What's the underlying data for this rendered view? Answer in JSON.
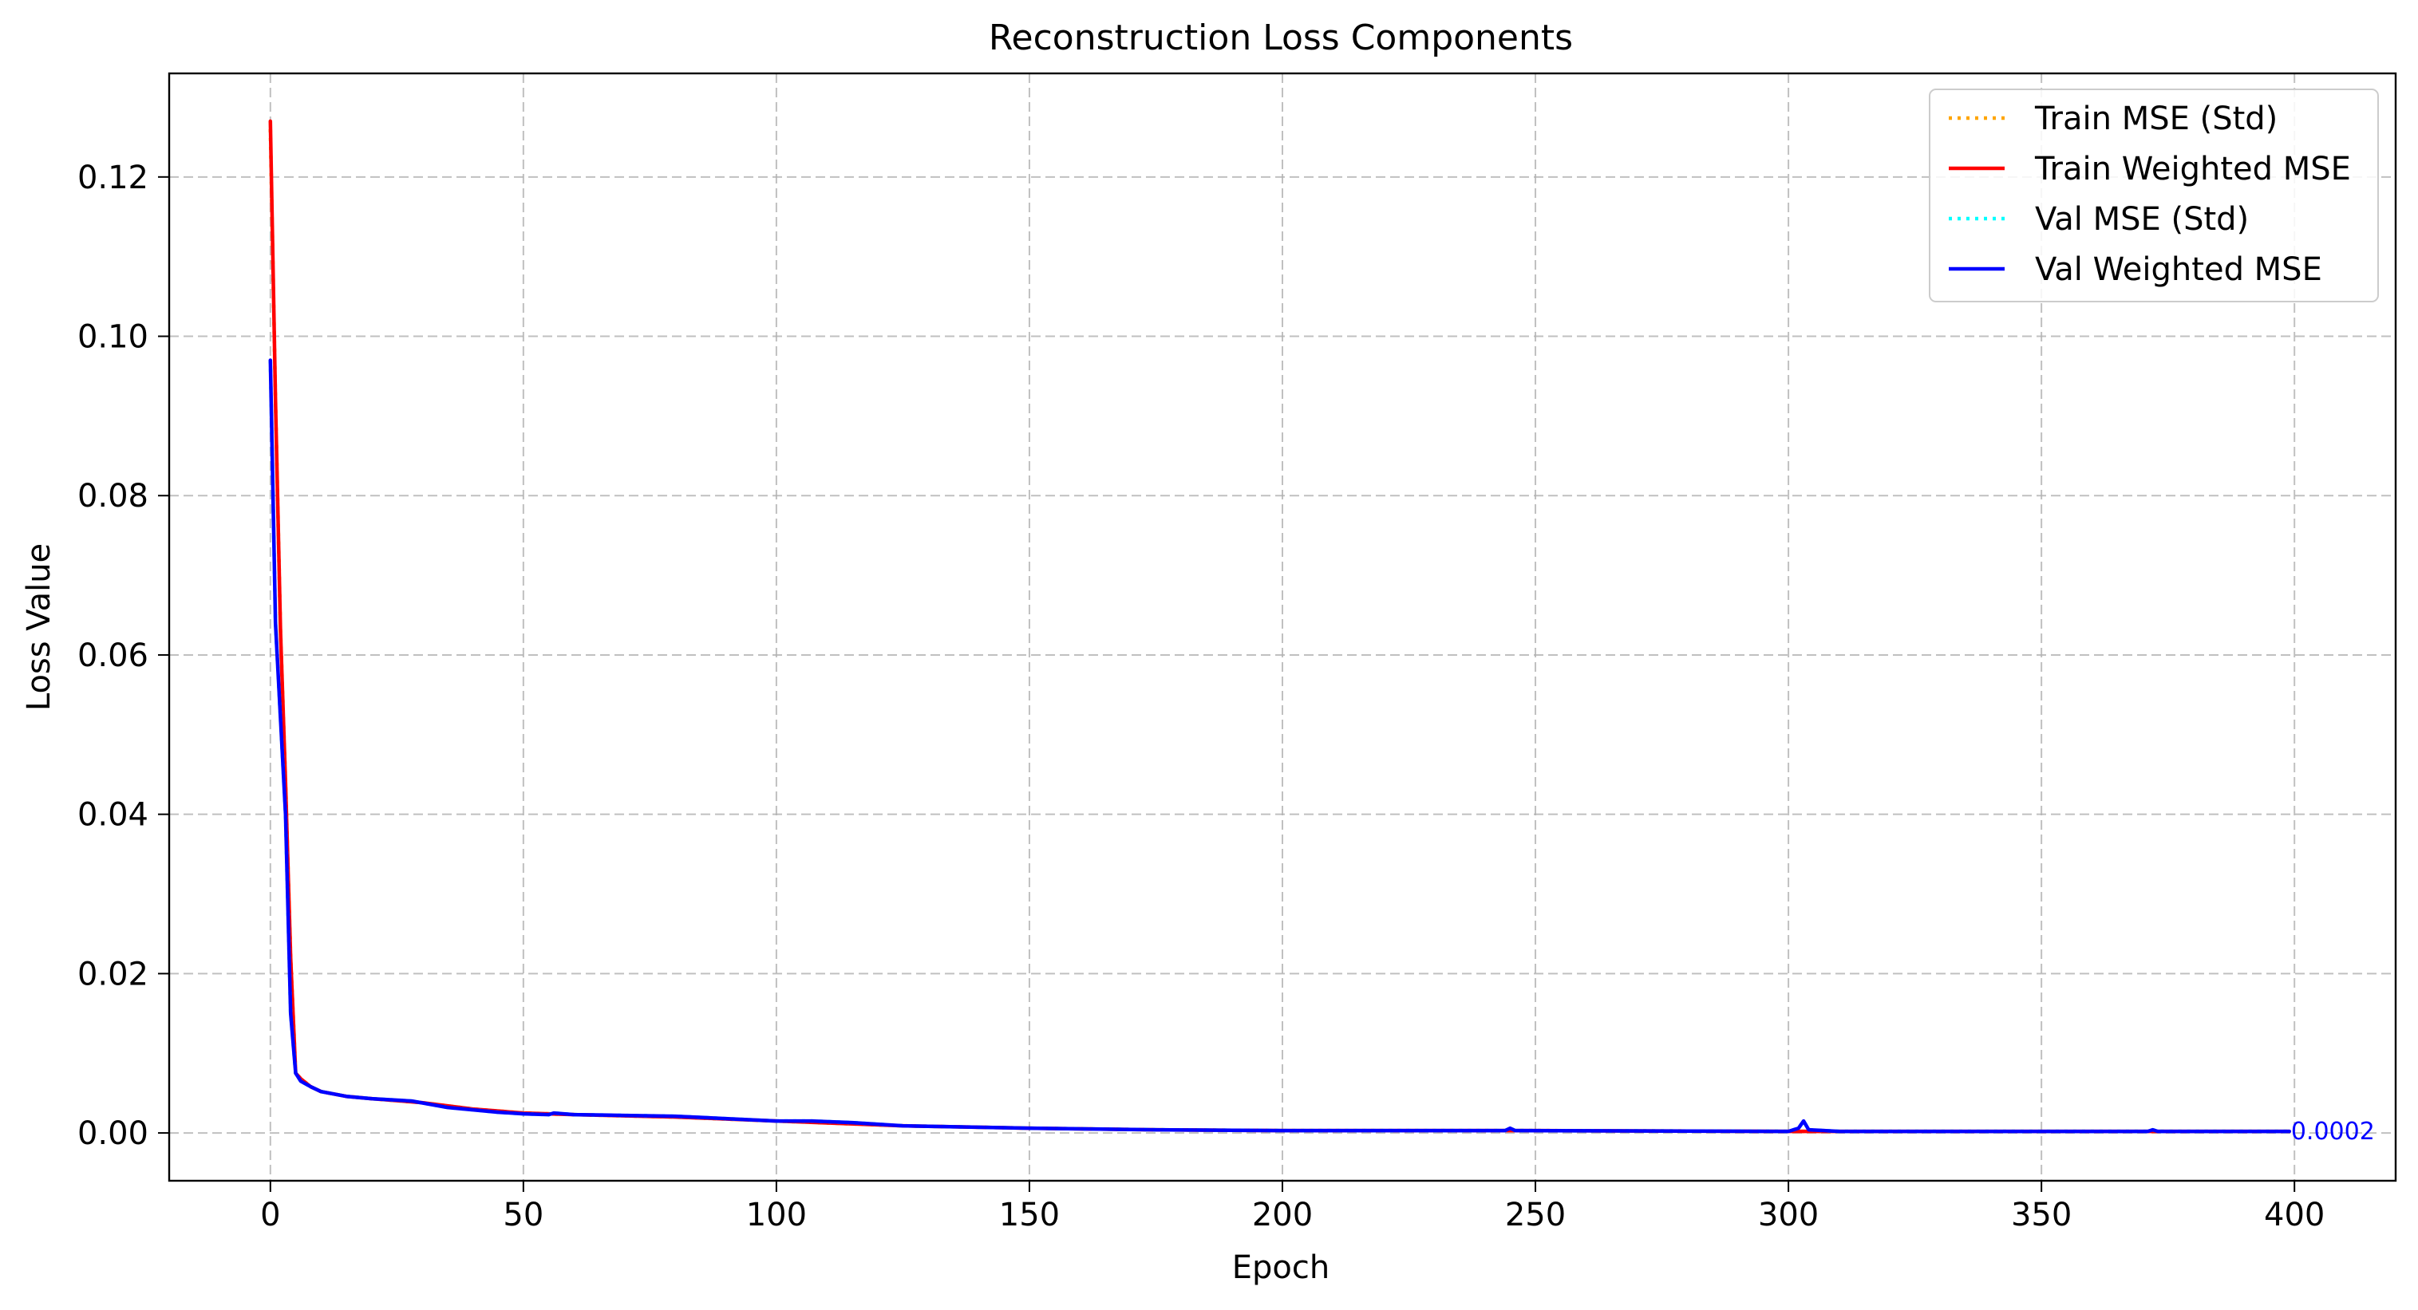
{
  "chart_data": {
    "type": "line",
    "title": "Reconstruction Loss Components",
    "xlabel": "Epoch",
    "ylabel": "Loss Value",
    "xlim": [
      -20,
      420
    ],
    "ylim": [
      -0.006,
      0.133
    ],
    "xticks": [
      0,
      50,
      100,
      150,
      200,
      250,
      300,
      350,
      400
    ],
    "yticks": [
      0.0,
      0.02,
      0.04,
      0.06,
      0.08,
      0.1,
      0.12
    ],
    "xtick_labels": [
      "0",
      "50",
      "100",
      "150",
      "200",
      "250",
      "300",
      "350",
      "400"
    ],
    "ytick_labels": [
      "0.00",
      "0.02",
      "0.04",
      "0.06",
      "0.08",
      "0.10",
      "0.12"
    ],
    "grid": true,
    "legend_position": "upper right",
    "series": [
      {
        "name": "Train MSE (Std)",
        "color": "#FFA500",
        "style": "dotted",
        "x": [
          0,
          1,
          2,
          3,
          4,
          5,
          6,
          8,
          10,
          15,
          20,
          30,
          40,
          50,
          60,
          80,
          100,
          125,
          150,
          175,
          200,
          250,
          300,
          350,
          399
        ],
        "y": [
          0.126,
          0.092,
          0.063,
          0.044,
          0.022,
          0.0075,
          0.0068,
          0.0058,
          0.0052,
          0.0046,
          0.0043,
          0.0038,
          0.003,
          0.0025,
          0.0023,
          0.002,
          0.0015,
          0.0009,
          0.0006,
          0.0004,
          0.0003,
          0.0003,
          0.0002,
          0.0002,
          0.0002
        ]
      },
      {
        "name": "Train Weighted MSE",
        "color": "#FF0000",
        "style": "solid",
        "x": [
          0,
          1,
          2,
          3,
          4,
          5,
          6,
          8,
          10,
          15,
          20,
          30,
          40,
          50,
          60,
          80,
          100,
          125,
          150,
          175,
          200,
          250,
          300,
          350,
          399
        ],
        "y": [
          0.127,
          0.092,
          0.063,
          0.044,
          0.022,
          0.0075,
          0.0068,
          0.0058,
          0.0052,
          0.0046,
          0.0043,
          0.0038,
          0.003,
          0.0025,
          0.0023,
          0.002,
          0.0015,
          0.0009,
          0.0006,
          0.0004,
          0.0003,
          0.0003,
          0.0002,
          0.0002,
          0.0002
        ]
      },
      {
        "name": "Val MSE (Std)",
        "color": "#00FFFF",
        "style": "dotted",
        "x": [
          0,
          1,
          2,
          3,
          4,
          5,
          6,
          8,
          10,
          15,
          20,
          28,
          35,
          45,
          50,
          55,
          56,
          60,
          70,
          80,
          90,
          100,
          107,
          115,
          125,
          150,
          175,
          200,
          244,
          245,
          246,
          300,
          302,
          303,
          304,
          310,
          350,
          371,
          372,
          373,
          399
        ],
        "y": [
          0.097,
          0.064,
          0.052,
          0.04,
          0.015,
          0.0075,
          0.0065,
          0.0058,
          0.0052,
          0.0046,
          0.0043,
          0.004,
          0.0032,
          0.0026,
          0.0024,
          0.0023,
          0.0025,
          0.0023,
          0.0022,
          0.0021,
          0.0018,
          0.0015,
          0.0015,
          0.0013,
          0.0009,
          0.0006,
          0.0004,
          0.0003,
          0.0003,
          0.0006,
          0.0003,
          0.0002,
          0.0006,
          0.0015,
          0.0004,
          0.0002,
          0.0002,
          0.0002,
          0.0004,
          0.0002,
          0.0002
        ]
      },
      {
        "name": "Val Weighted MSE",
        "color": "#0000FF",
        "style": "solid",
        "x": [
          0,
          1,
          2,
          3,
          4,
          5,
          6,
          8,
          10,
          15,
          20,
          28,
          35,
          45,
          50,
          55,
          56,
          60,
          70,
          80,
          90,
          100,
          107,
          115,
          125,
          150,
          175,
          200,
          244,
          245,
          246,
          300,
          302,
          303,
          304,
          310,
          350,
          371,
          372,
          373,
          399
        ],
        "y": [
          0.097,
          0.064,
          0.052,
          0.04,
          0.015,
          0.0075,
          0.0065,
          0.0058,
          0.0052,
          0.0046,
          0.0043,
          0.004,
          0.0032,
          0.0026,
          0.0024,
          0.0023,
          0.0025,
          0.0023,
          0.0022,
          0.0021,
          0.0018,
          0.0015,
          0.0015,
          0.0013,
          0.0009,
          0.0006,
          0.0004,
          0.0003,
          0.0003,
          0.0006,
          0.0003,
          0.0002,
          0.0006,
          0.0015,
          0.0004,
          0.0002,
          0.0002,
          0.0002,
          0.0004,
          0.0002,
          0.0002
        ]
      }
    ],
    "annotations": [
      {
        "text": "0.0002",
        "x": 399,
        "y": 0.0002,
        "color": "#0000FF"
      }
    ]
  }
}
